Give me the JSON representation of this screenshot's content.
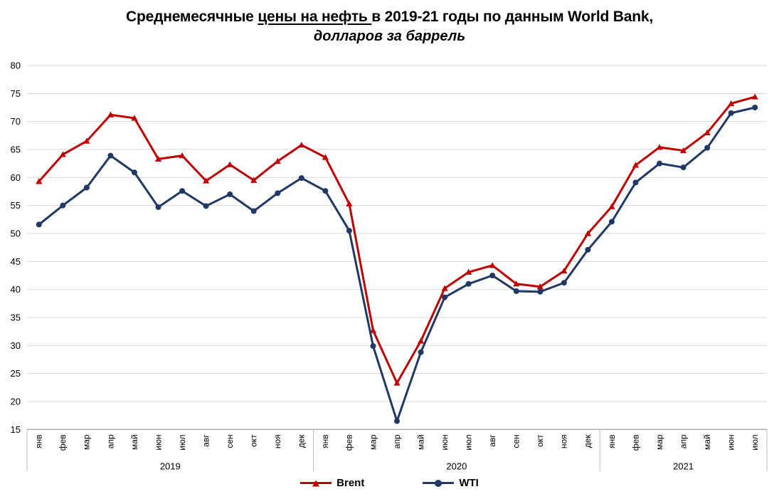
{
  "title": {
    "prefix": "Среднемесячные ",
    "underlined": "цены на нефть ",
    "suffix": "в 2019-21 годы по данным World Bank,",
    "subtitle": "долларов за баррель"
  },
  "chart_data": {
    "type": "line",
    "title": "Среднемесячные цены на нефть в 2019-21 годы по данным World Bank",
    "subtitle": "долларов за баррель",
    "grid": true,
    "legend_position": "bottom",
    "ylim": [
      15,
      80
    ],
    "ytick_step": 5,
    "months": [
      "янв",
      "фев",
      "мар",
      "апр",
      "май",
      "июн",
      "июл",
      "авг",
      "сен",
      "окт",
      "ноя",
      "дек",
      "янв",
      "фев",
      "мар",
      "апр",
      "май",
      "июн",
      "июл",
      "авг",
      "сен",
      "окт",
      "ноя",
      "дек",
      "янв",
      "фев",
      "мар",
      "апр",
      "май",
      "июн",
      "июл"
    ],
    "year_groups": [
      {
        "label": "2019",
        "months": 12
      },
      {
        "label": "2020",
        "months": 12
      },
      {
        "label": "2021",
        "months": 7
      }
    ],
    "series": [
      {
        "name": "Brent",
        "color": "#C00000",
        "marker": "triangle",
        "values": [
          59.3,
          64.1,
          66.5,
          71.2,
          70.6,
          63.3,
          63.9,
          59.4,
          62.3,
          59.5,
          62.9,
          65.8,
          63.6,
          55.3,
          32.7,
          23.3,
          30.8,
          40.2,
          43.1,
          44.3,
          41.0,
          40.5,
          43.3,
          50.0,
          54.8,
          62.2,
          65.4,
          64.8,
          68.0,
          73.2,
          74.4
        ]
      },
      {
        "name": "WTI",
        "color": "#1F3864",
        "marker": "circle",
        "values": [
          51.6,
          55.0,
          58.2,
          63.9,
          60.9,
          54.7,
          57.6,
          54.9,
          57.0,
          54.0,
          57.2,
          59.9,
          57.6,
          50.5,
          29.9,
          16.5,
          28.8,
          38.6,
          41.0,
          42.5,
          39.7,
          39.6,
          41.2,
          47.1,
          52.1,
          59.1,
          62.5,
          61.8,
          65.3,
          71.5,
          72.5
        ]
      }
    ],
    "colors": {
      "gridline": "#D9D9D9",
      "axis_line": "#A6A6A6",
      "band_border": "#BFBFBF",
      "text": "#000000"
    }
  }
}
